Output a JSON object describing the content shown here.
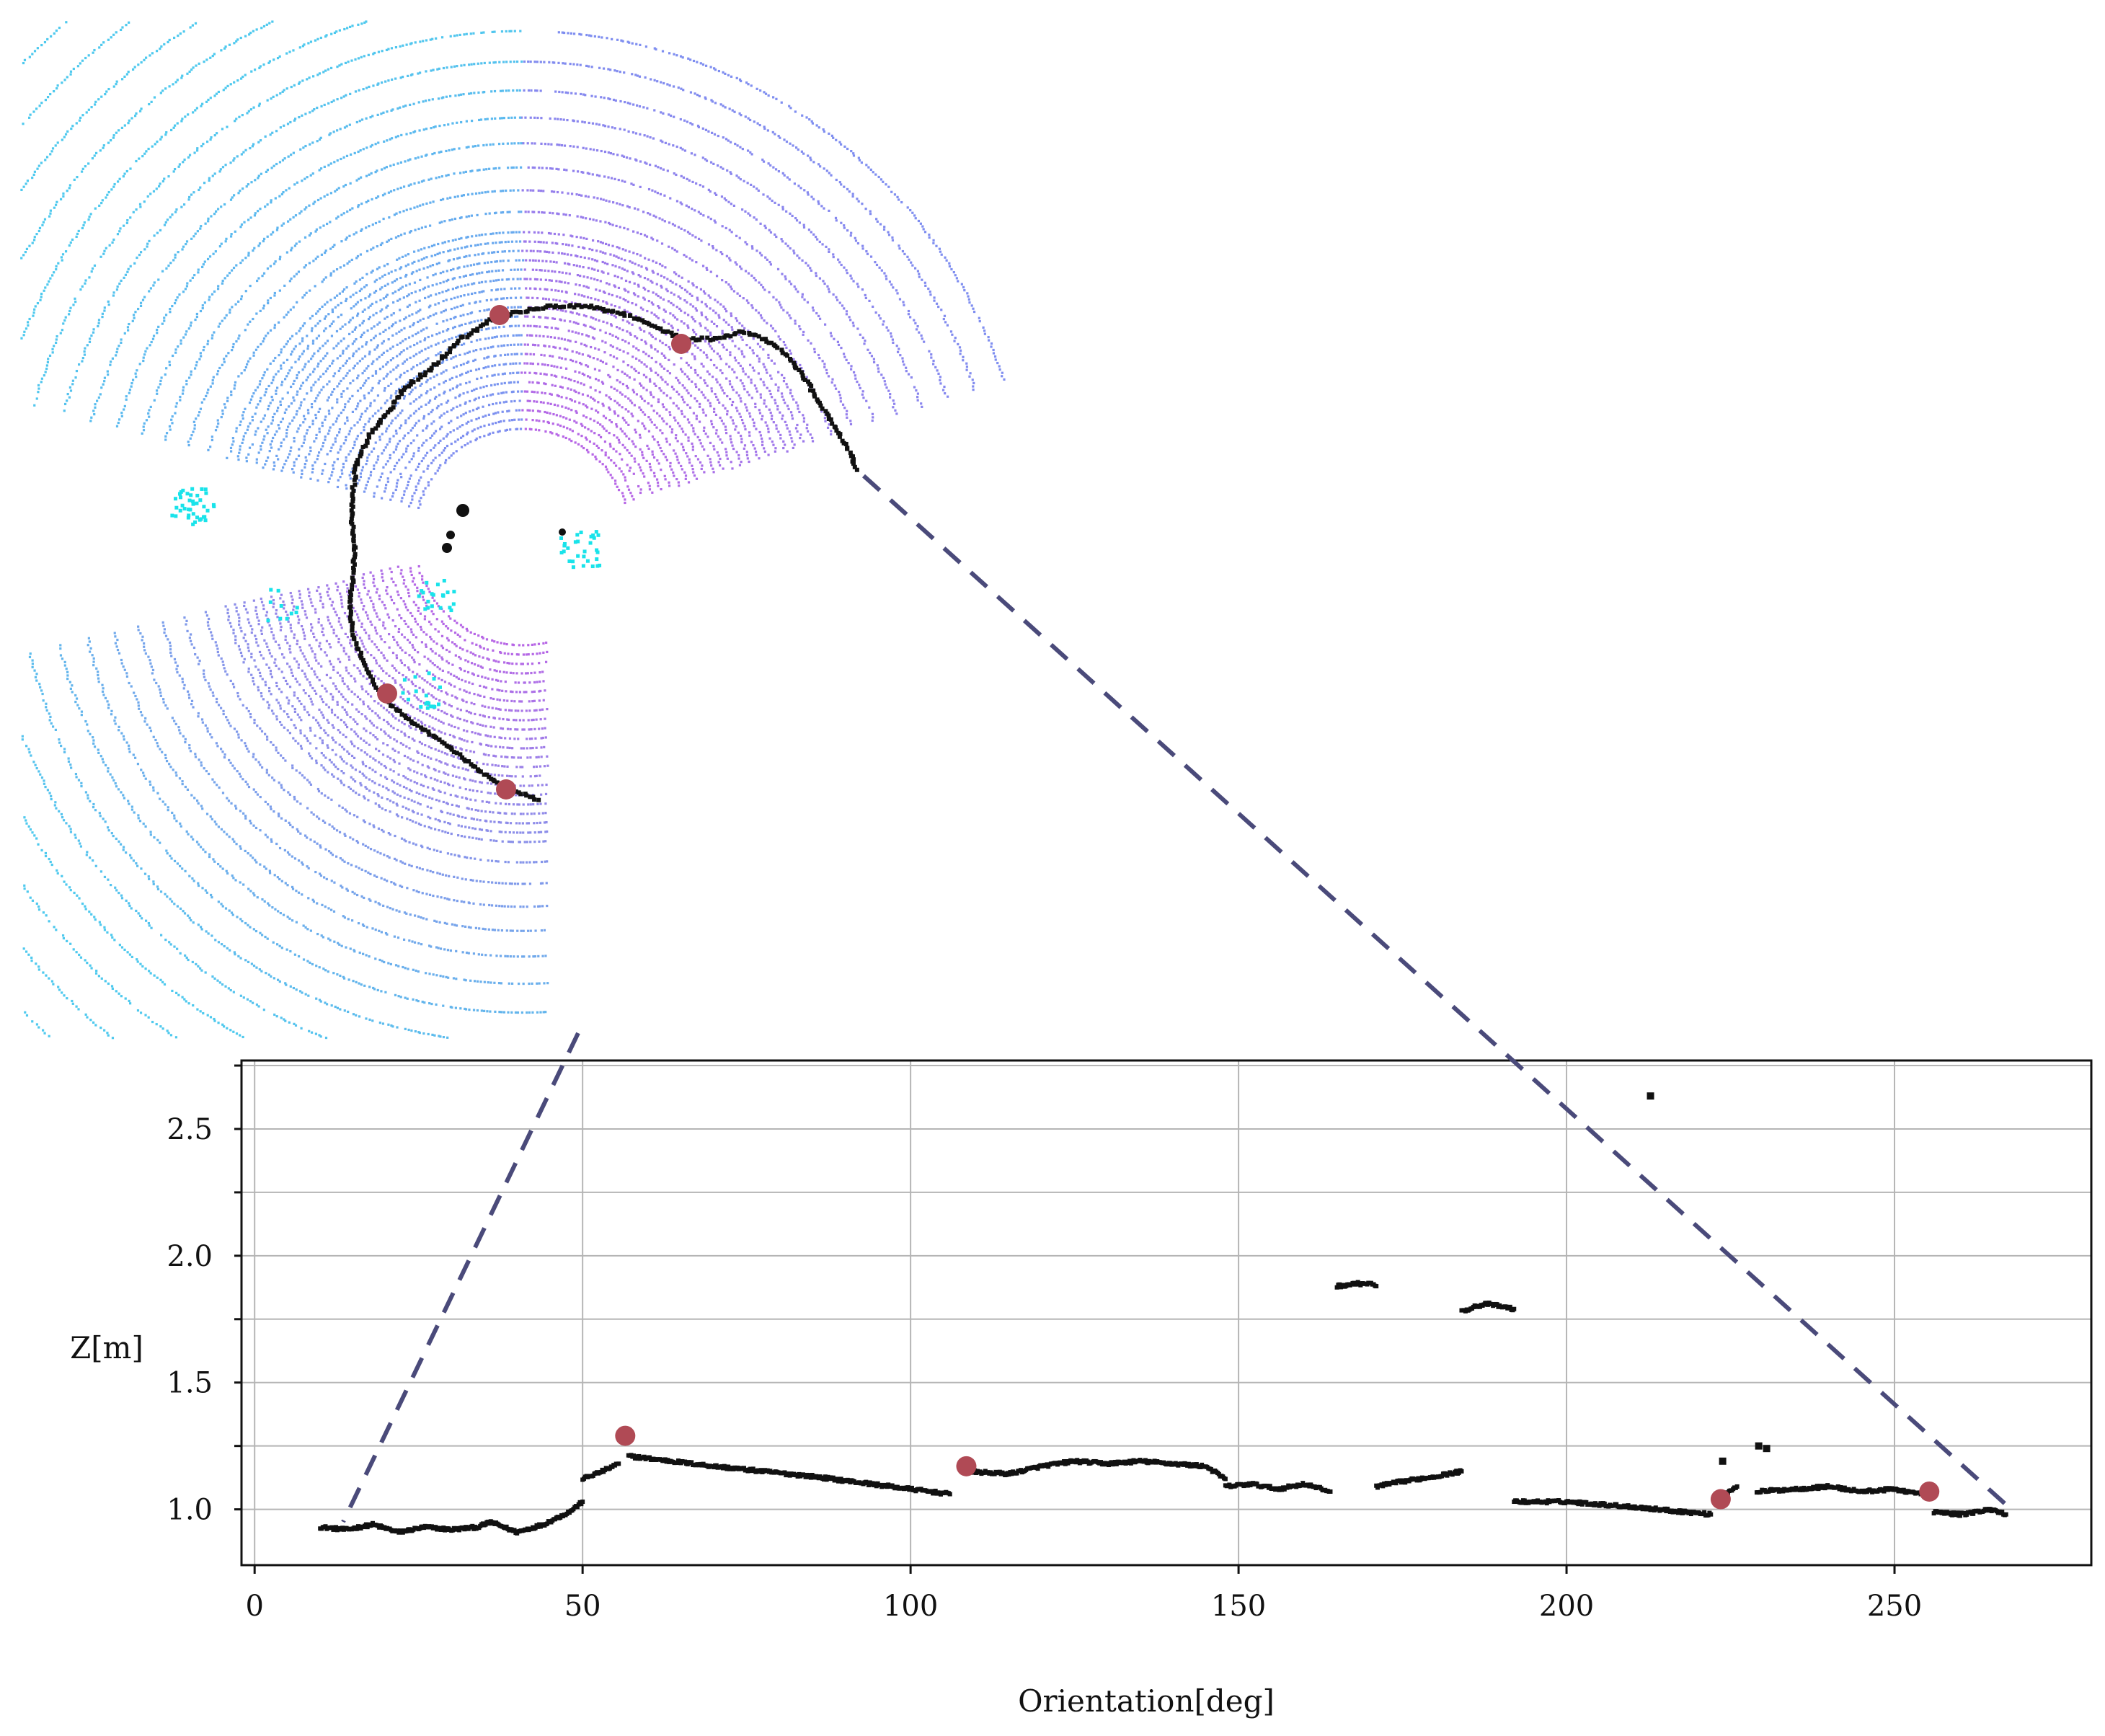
{
  "colors": {
    "background": "#ffffff",
    "grid": "#b5b5b5",
    "frame": "#111111",
    "curb_points": "#111111",
    "breakpoint_marker": "#b04a55",
    "zoom_line": "#4a4a7a",
    "lidar_near": "#b766e6",
    "lidar_mid": "#7f8ef0",
    "lidar_far": "#4ec9ee",
    "lidar_cyan": "#19e3ea"
  },
  "icons": {
    "breakpoint": "red-circle-marker",
    "zoom": "dashed-zoom-lines"
  },
  "chart_data": [
    {
      "type": "scatter",
      "title": "",
      "xlabel": "Orientation[deg]",
      "ylabel": "Z[m]",
      "xlim": [
        -2,
        280
      ],
      "ylim": [
        0.78,
        2.77
      ],
      "xticks": [
        0,
        50,
        100,
        150,
        200,
        250
      ],
      "xtick_labels": [
        "0",
        "50",
        "100",
        "150",
        "200",
        "250"
      ],
      "yticks": [
        1.0,
        1.5,
        2.0,
        2.5
      ],
      "ytick_labels": [
        "1.0",
        "1.5",
        "2.0",
        "2.5"
      ],
      "grid": true,
      "legend": "none",
      "segments": [
        {
          "x": [
            10,
            14,
            18,
            22,
            26,
            30,
            34,
            36,
            40,
            44,
            48,
            50
          ],
          "y": [
            0.93,
            0.92,
            0.94,
            0.91,
            0.93,
            0.92,
            0.93,
            0.95,
            0.91,
            0.94,
            0.99,
            1.03
          ]
        },
        {
          "x": [
            50,
            53,
            55.5
          ],
          "y": [
            1.12,
            1.15,
            1.18
          ]
        },
        {
          "x": [
            57,
            70,
            85,
            100,
            106
          ],
          "y": [
            1.21,
            1.17,
            1.13,
            1.08,
            1.06
          ]
        },
        {
          "x": [
            108,
            115,
            120,
            125,
            130,
            135,
            140,
            145,
            148
          ],
          "y": [
            1.15,
            1.14,
            1.17,
            1.19,
            1.18,
            1.19,
            1.18,
            1.17,
            1.12
          ]
        },
        {
          "x": [
            148,
            152,
            156,
            160,
            164
          ],
          "y": [
            1.09,
            1.1,
            1.08,
            1.1,
            1.07
          ]
        },
        {
          "x": [
            165,
            168,
            170,
            171
          ],
          "y": [
            1.88,
            1.89,
            1.89,
            1.88
          ]
        },
        {
          "x": [
            171,
            175,
            180,
            184
          ],
          "y": [
            1.09,
            1.11,
            1.13,
            1.15
          ]
        },
        {
          "x": [
            184,
            186,
            188,
            190,
            192
          ],
          "y": [
            1.78,
            1.8,
            1.81,
            1.8,
            1.79
          ]
        },
        {
          "x": [
            192,
            200,
            210,
            218,
            222
          ],
          "y": [
            1.03,
            1.03,
            1.01,
            0.99,
            0.98
          ]
        },
        {
          "x": [
            224,
            226
          ],
          "y": [
            1.06,
            1.09
          ]
        },
        {
          "x": [
            229,
            235,
            240,
            245,
            250,
            254
          ],
          "y": [
            1.07,
            1.08,
            1.09,
            1.07,
            1.08,
            1.06
          ]
        },
        {
          "x": [
            256,
            260,
            265,
            267
          ],
          "y": [
            0.99,
            0.98,
            1.0,
            0.98
          ]
        }
      ],
      "isolated_points": [
        {
          "x": 212.8,
          "y": 2.63
        },
        {
          "x": 223.8,
          "y": 1.19
        },
        {
          "x": 229.3,
          "y": 1.25
        },
        {
          "x": 230.5,
          "y": 1.24
        }
      ],
      "breakpoints": [
        {
          "x": 56.5,
          "y": 1.29
        },
        {
          "x": 108.5,
          "y": 1.17
        },
        {
          "x": 223.5,
          "y": 1.04
        },
        {
          "x": 255.3,
          "y": 1.07
        }
      ]
    }
  ]
}
